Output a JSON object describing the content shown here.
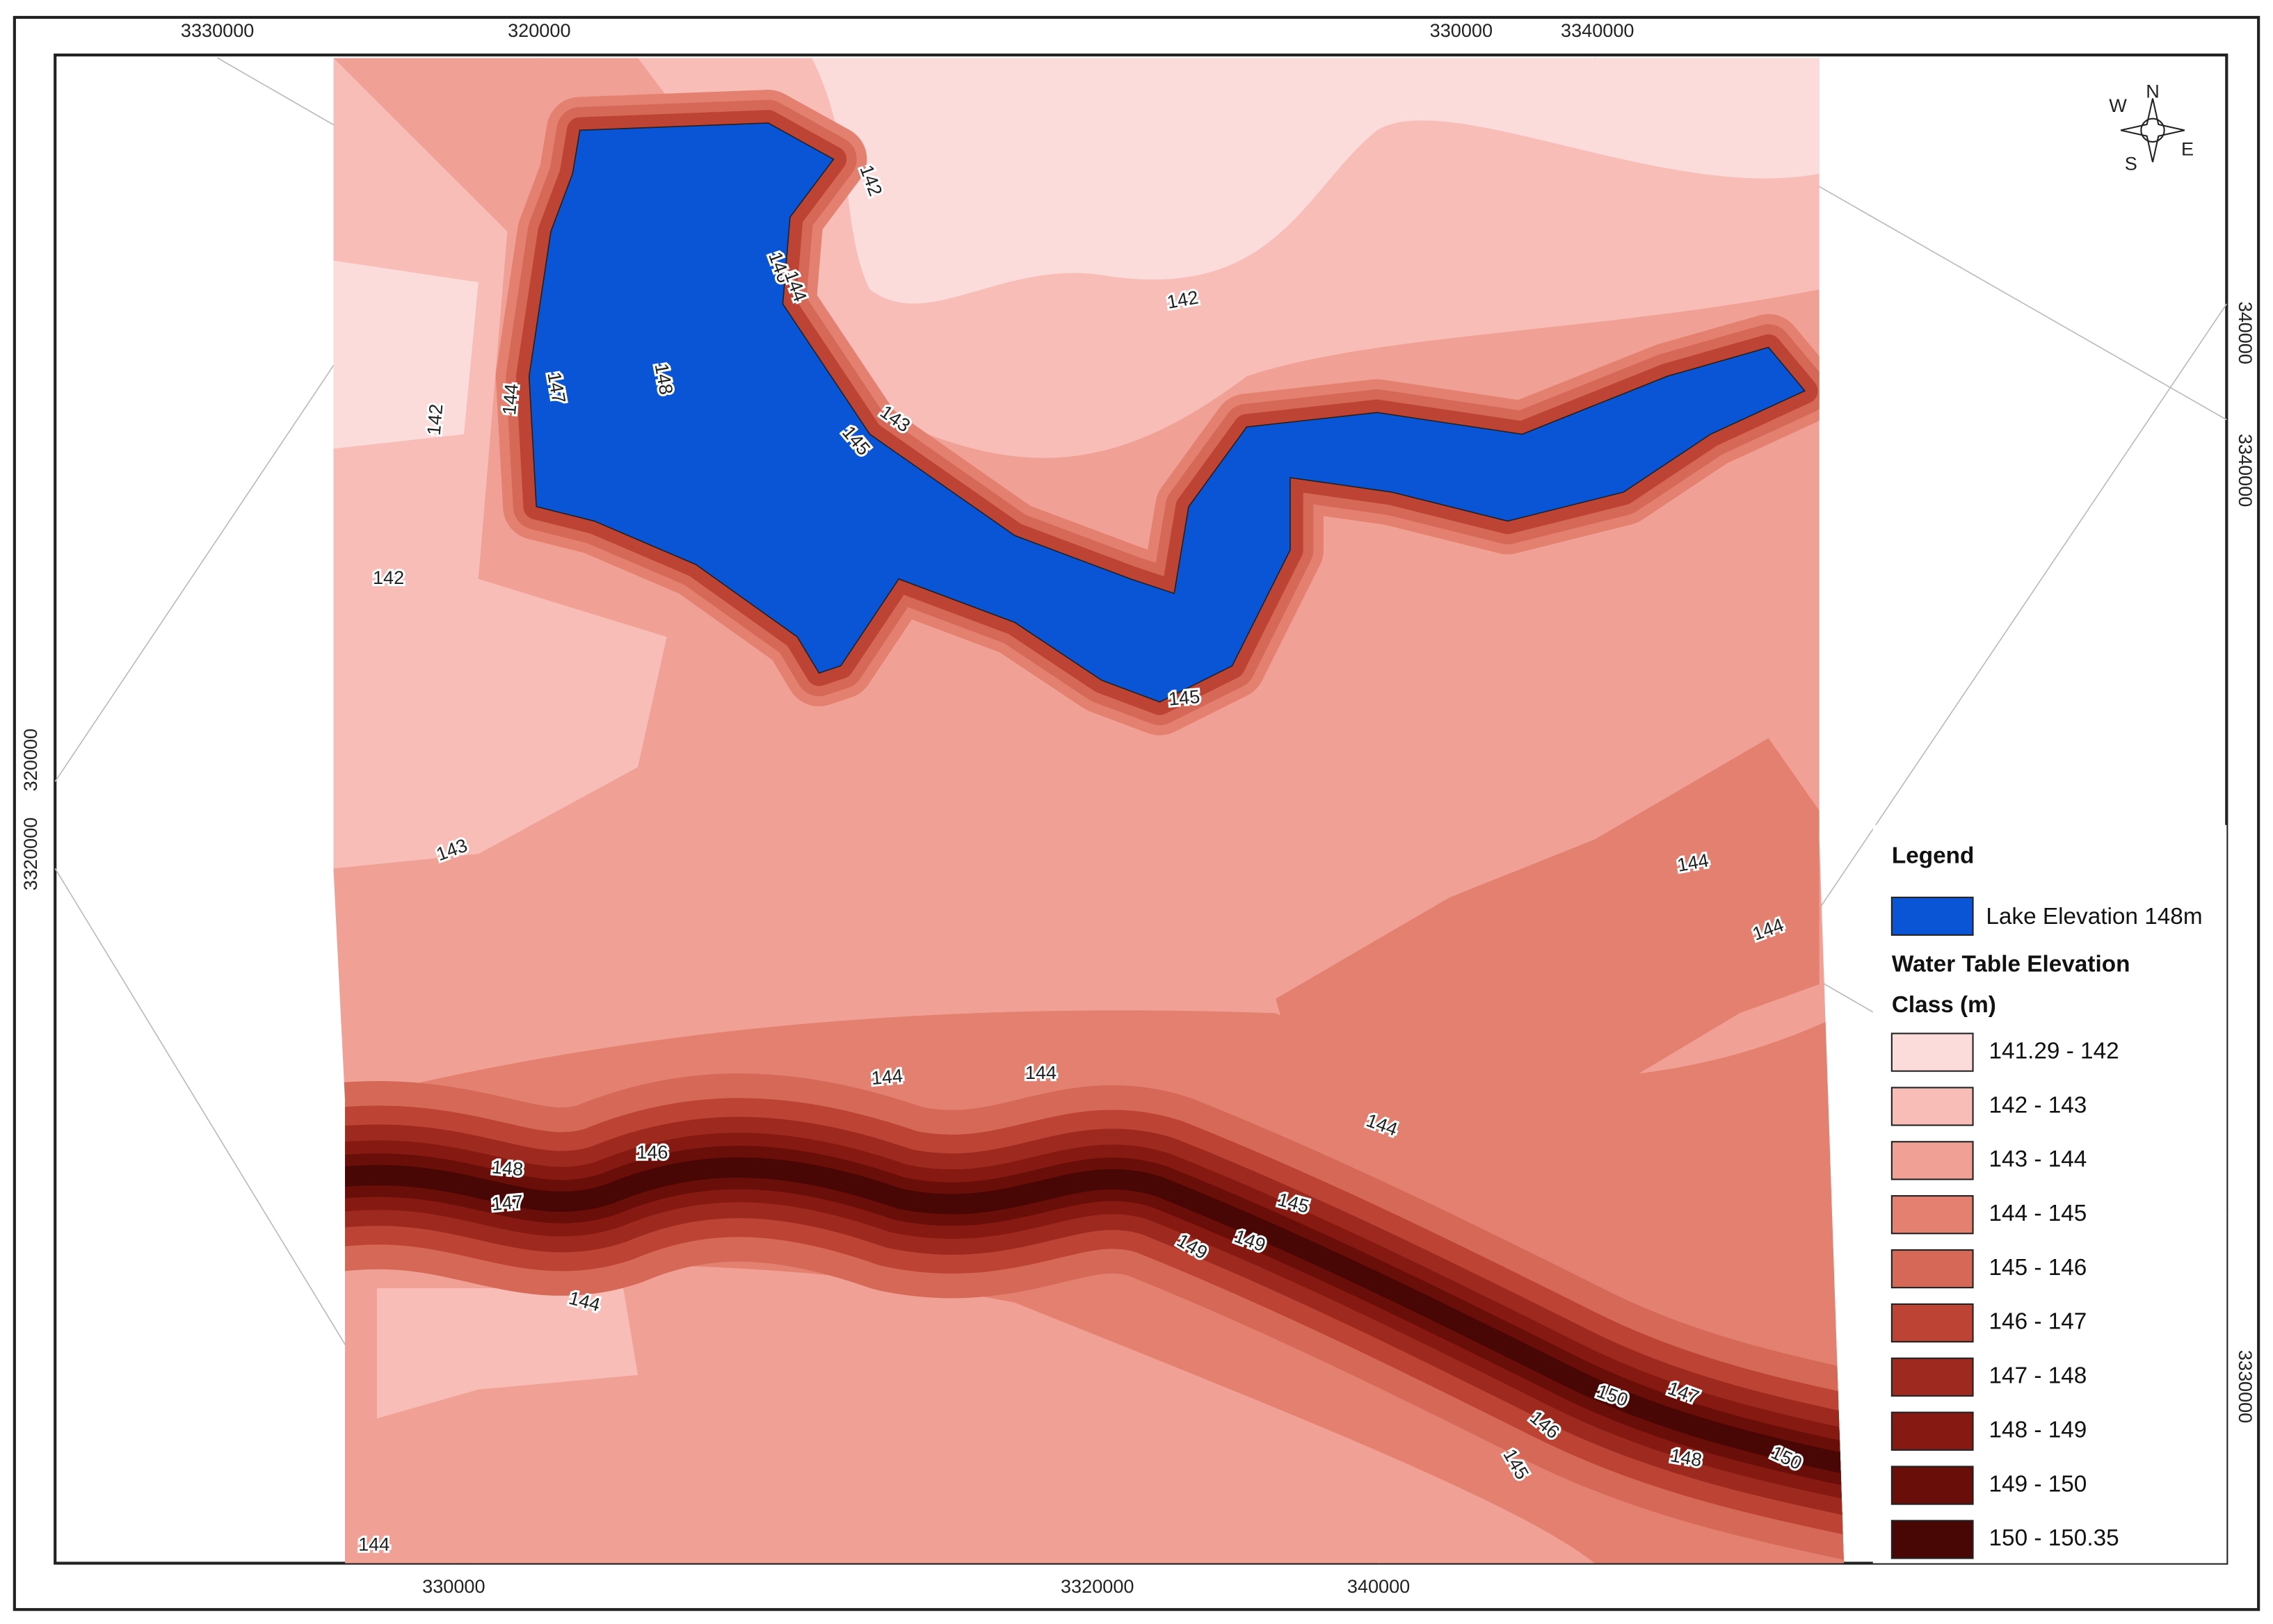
{
  "map": {
    "grid_labels": {
      "top": [
        "3330000",
        "320000",
        "330000",
        "3340000"
      ],
      "right": [
        "340000",
        "3340000",
        "3330000"
      ],
      "left": [
        "320000",
        "3320000"
      ],
      "bottom": [
        "330000",
        "3320000",
        "340000"
      ]
    },
    "compass": [
      "N",
      "E",
      "S",
      "W"
    ],
    "contour_labels": [
      142,
      146,
      144,
      147,
      148,
      144,
      142,
      143,
      145,
      142,
      142,
      145,
      143,
      144,
      144,
      144,
      144,
      144,
      148,
      146,
      147,
      145,
      149,
      149,
      144,
      150,
      147,
      146,
      148,
      145,
      150,
      144
    ],
    "legend": {
      "title": "Legend",
      "lake": {
        "label": "Lake Elevation 148m",
        "color": "#0a55d6"
      },
      "subtitle": "Water Table Elevation",
      "class_label": "Class (m)",
      "items": [
        {
          "label": "141.29 - 142",
          "color": "#fbdcda"
        },
        {
          "label": "142 - 143",
          "color": "#f7bdb6"
        },
        {
          "label": "143 - 144",
          "color": "#f0a094"
        },
        {
          "label": "144 - 145",
          "color": "#e3806f"
        },
        {
          "label": "145 - 146",
          "color": "#d56857"
        },
        {
          "label": "146 - 147",
          "color": "#bd4435"
        },
        {
          "label": "147 - 148",
          "color": "#9e2a1f"
        },
        {
          "label": "148 - 149",
          "color": "#861911"
        },
        {
          "label": "149 - 150",
          "color": "#690e09"
        },
        {
          "label": "150 - 150.35",
          "color": "#480604"
        }
      ]
    }
  }
}
